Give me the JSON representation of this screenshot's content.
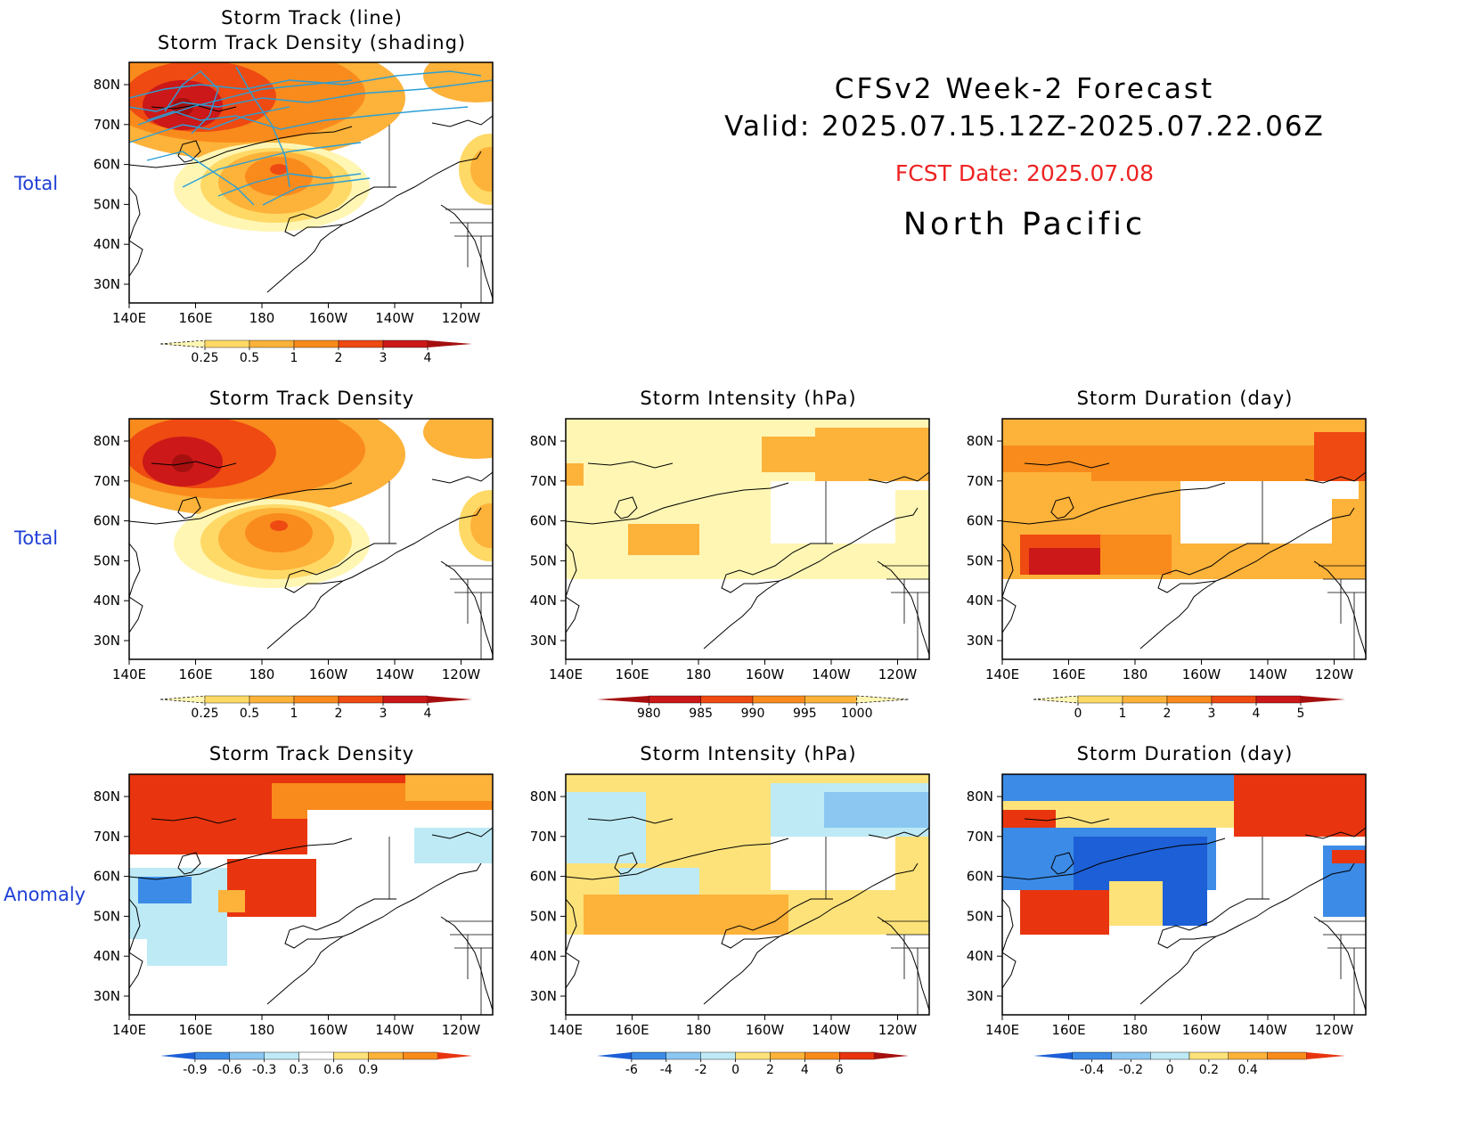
{
  "header": {
    "line1": "CFSv2  Week-2  Forecast",
    "line2": "Valid:  2025.07.15.12Z-2025.07.22.06Z",
    "fcst": "FCST Date: 2025.07.08",
    "region": "North  Pacific"
  },
  "rows": {
    "total_label": "Total",
    "anomaly_label": "Anomaly"
  },
  "axes": {
    "lon_ticks": [
      "140E",
      "160E",
      "180",
      "160W",
      "140W",
      "120W"
    ],
    "lat_ticks": [
      "80N",
      "70N",
      "60N",
      "50N",
      "40N",
      "30N"
    ]
  },
  "panels": [
    {
      "id": "p0",
      "title_lines": [
        "Storm Track (line)",
        "Storm Track Density (shading)"
      ]
    },
    {
      "id": "p1",
      "title_lines": [
        "Storm Track Density"
      ]
    },
    {
      "id": "p2",
      "title_lines": [
        "Storm Intensity (hPa)"
      ]
    },
    {
      "id": "p3",
      "title_lines": [
        "Storm Duration (day)"
      ]
    },
    {
      "id": "p4",
      "title_lines": [
        "Storm Track Density"
      ]
    },
    {
      "id": "p5",
      "title_lines": [
        "Storm Intensity (hPa)"
      ]
    },
    {
      "id": "p6",
      "title_lines": [
        "Storm Duration (day)"
      ]
    }
  ],
  "colorbars": {
    "density": {
      "labels": [
        "0.25",
        "0.5",
        "1",
        "2",
        "3",
        "4"
      ],
      "colors": [
        "#fff6b4",
        "#ffd966",
        "#fdb23a",
        "#f98b1c",
        "#ee4a12",
        "#cc1818",
        "#a50f0f"
      ]
    },
    "intensity": {
      "labels": [
        "980",
        "985",
        "990",
        "995",
        "1000"
      ],
      "colors": [
        "#a50f0f",
        "#cc1818",
        "#ee4a12",
        "#f98b1c",
        "#fdb23a",
        "#fff6b4"
      ]
    },
    "duration": {
      "labels": [
        "0",
        "1",
        "2",
        "3",
        "4",
        "5"
      ],
      "colors": [
        "#fff6b4",
        "#ffd966",
        "#fdb23a",
        "#f98b1c",
        "#ee4a12",
        "#cc1818",
        "#a50f0f"
      ]
    },
    "anom_density": {
      "labels": [
        "-0.9",
        "-0.6",
        "-0.3",
        "0.3",
        "0.6",
        "0.9"
      ],
      "colors": [
        "#1d5fd6",
        "#3c8be6",
        "#8cc7f2",
        "#bdeaf5",
        "#ffffff",
        "#fde27a",
        "#fdb23a",
        "#f98b1c",
        "#e8350f"
      ]
    },
    "anom_intensity": {
      "labels": [
        "-6",
        "-4",
        "-2",
        "0",
        "2",
        "4",
        "6"
      ],
      "colors": [
        "#1d5fd6",
        "#3c8be6",
        "#8cc7f2",
        "#bdeaf5",
        "#fde27a",
        "#fdb23a",
        "#f98b1c",
        "#e8350f",
        "#a50f0f"
      ]
    },
    "anom_duration": {
      "labels": [
        "-0.4",
        "-0.2",
        "0",
        "0.2",
        "0.4"
      ],
      "colors": [
        "#1d5fd6",
        "#3c8be6",
        "#8cc7f2",
        "#bdeaf5",
        "#fde27a",
        "#fdb23a",
        "#f98b1c",
        "#e8350f"
      ]
    }
  },
  "colors": {
    "track_line": "#2a9fd6",
    "row_label": "#1f3fd6",
    "fcst_text": "#ee2222"
  }
}
